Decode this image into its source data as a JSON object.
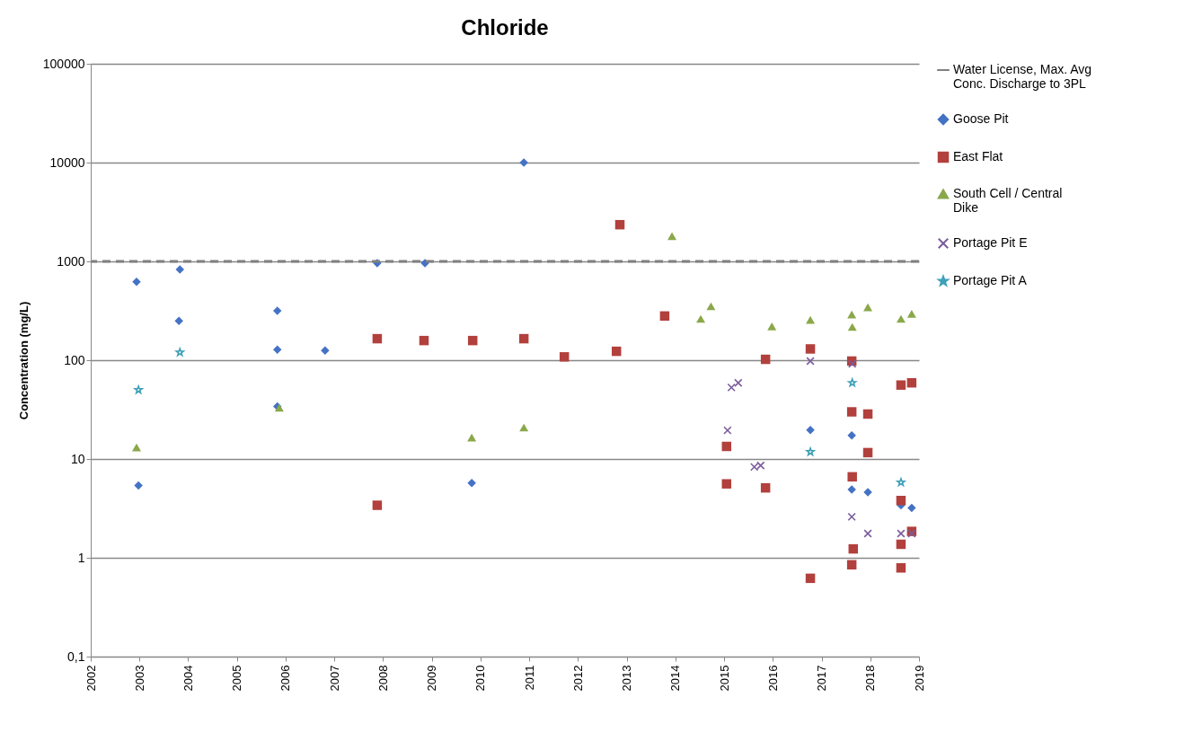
{
  "chart_data": {
    "type": "scatter",
    "title": "Chloride",
    "ylabel": "Concentration (mg/L)",
    "log": "y",
    "grid": "y",
    "legend": "right",
    "xlim": [
      2002,
      2019
    ],
    "xticks": [
      2002,
      2003,
      2004,
      2005,
      2006,
      2007,
      2008,
      2009,
      2010,
      2011,
      2012,
      2013,
      2014,
      2015,
      2016,
      2017,
      2018,
      2019
    ],
    "ylim": [
      0.1,
      100000
    ],
    "yticks": [
      {
        "value": 0.1,
        "label": "0,1"
      },
      1,
      10,
      100,
      1000,
      10000,
      100000
    ],
    "ref_lines": [
      {
        "axis": "y",
        "value": 1000,
        "label": "Water License, Max. Avg Conc. Discharge to 3PL",
        "color": "#808080",
        "line_style": "dashed"
      }
    ],
    "series": [
      {
        "name": "Goose Pit",
        "color": "#4472c4",
        "marker": "diamond",
        "x": [
          2002.94,
          2002.98,
          2003.83,
          2003.81,
          2005.83,
          2005.83,
          2005.83,
          2006.81,
          2007.88,
          2008.86,
          2009.82,
          2010.89,
          2016.77,
          2017.62,
          2017.62,
          2017.95,
          2018.63,
          2018.85
        ],
        "values": [
          620,
          5.4,
          830,
          250,
          316,
          128,
          34,
          125,
          960,
          960,
          5.7,
          10000,
          19.6,
          17.3,
          4.9,
          4.6,
          3.4,
          3.2
        ]
      },
      {
        "name": "East Flat",
        "color": "#b2403d",
        "marker": "square",
        "x": [
          2007.88,
          2007.88,
          2008.84,
          2009.84,
          2010.89,
          2011.72,
          2012.79,
          2012.86,
          2013.78,
          2015.85,
          2016.77,
          2017.62,
          2018.63,
          2018.85,
          2017.62,
          2017.95,
          2017.95,
          2015.05,
          2015.05,
          2015.85,
          2017.63,
          2018.63,
          2018.85,
          2017.65,
          2018.63,
          2017.62,
          2018.63,
          2016.77
        ],
        "values": [
          165,
          3.4,
          158,
          158,
          165,
          108,
          123,
          2350,
          280,
          102,
          130,
          98,
          56,
          59,
          30,
          28.5,
          11.6,
          13.4,
          5.6,
          5.1,
          6.6,
          3.8,
          1.85,
          1.23,
          1.37,
          0.85,
          0.79,
          0.62
        ]
      },
      {
        "name": "South Cell / Central Dike",
        "color": "#8aa84a",
        "marker": "triangle",
        "x": [
          2002.94,
          2005.87,
          2009.82,
          2010.89,
          2013.93,
          2014.52,
          2014.73,
          2015.98,
          2016.77,
          2017.62,
          2017.63,
          2017.95,
          2018.63,
          2018.85
        ],
        "values": [
          13.1,
          33,
          16.5,
          20.8,
          1800,
          262,
          351,
          220,
          256,
          290,
          217,
          343,
          262,
          295
        ]
      },
      {
        "name": "Portage Pit E",
        "color": "#7b5c9c",
        "marker": "cross",
        "x": [
          2015.07,
          2015.15,
          2015.29,
          2015.62,
          2015.75,
          2016.77,
          2017.63,
          2017.62,
          2017.95,
          2018.63,
          2018.85
        ],
        "values": [
          19.5,
          53,
          59,
          8.3,
          8.6,
          98,
          92,
          2.6,
          1.76,
          1.76,
          1.76
        ]
      },
      {
        "name": "Portage Pit A",
        "color": "#3fa0b8",
        "marker": "star",
        "x": [
          2002.98,
          2003.83,
          2017.63,
          2016.77,
          2018.63
        ],
        "values": [
          50,
          120,
          59,
          11.8,
          5.8
        ]
      }
    ]
  }
}
